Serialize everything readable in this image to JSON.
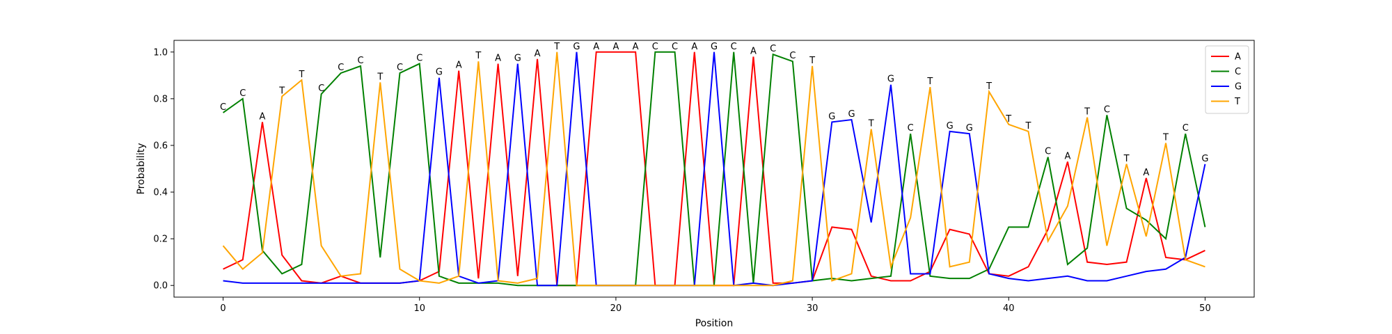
{
  "chart_data": {
    "type": "line",
    "xlabel": "Position",
    "ylabel": "Probability",
    "xlim": [
      -2.5,
      52.5
    ],
    "ylim": [
      -0.05,
      1.05
    ],
    "xticks": [
      0,
      10,
      20,
      30,
      40,
      50
    ],
    "yticks": [
      0.0,
      0.2,
      0.4,
      0.6,
      0.8,
      1.0
    ],
    "xtick_labels": [
      "0",
      "10",
      "20",
      "30",
      "40",
      "50"
    ],
    "ytick_labels": [
      "0.0",
      "0.2",
      "0.4",
      "0.6",
      "0.8",
      "1.0"
    ],
    "grid": false,
    "legend_placement": "top-right",
    "x": [
      0,
      1,
      2,
      3,
      4,
      5,
      6,
      7,
      8,
      9,
      10,
      11,
      12,
      13,
      14,
      15,
      16,
      17,
      18,
      19,
      20,
      21,
      22,
      23,
      24,
      25,
      26,
      27,
      28,
      29,
      30,
      31,
      32,
      33,
      34,
      35,
      36,
      37,
      38,
      39,
      40,
      41,
      42,
      43,
      44,
      45,
      46,
      47,
      48,
      49,
      50
    ],
    "series": [
      {
        "name": "A",
        "color": "#ff0000",
        "values": [
          0.07,
          0.11,
          0.7,
          0.13,
          0.02,
          0.01,
          0.04,
          0.01,
          0.01,
          0.01,
          0.02,
          0.06,
          0.92,
          0.03,
          0.95,
          0.04,
          0.97,
          0.0,
          0.0,
          1.0,
          1.0,
          1.0,
          0.0,
          0.0,
          1.0,
          0.0,
          0.0,
          0.98,
          0.01,
          0.01,
          0.02,
          0.25,
          0.24,
          0.04,
          0.02,
          0.02,
          0.06,
          0.24,
          0.22,
          0.05,
          0.04,
          0.08,
          0.24,
          0.53,
          0.1,
          0.09,
          0.1,
          0.46,
          0.12,
          0.11,
          0.15
        ]
      },
      {
        "name": "C",
        "color": "#008000",
        "values": [
          0.74,
          0.8,
          0.15,
          0.05,
          0.09,
          0.82,
          0.91,
          0.94,
          0.12,
          0.91,
          0.95,
          0.04,
          0.01,
          0.01,
          0.01,
          0.0,
          0.0,
          0.0,
          0.0,
          0.0,
          0.0,
          0.0,
          1.0,
          1.0,
          0.0,
          0.0,
          1.0,
          0.01,
          0.99,
          0.96,
          0.02,
          0.03,
          0.02,
          0.03,
          0.04,
          0.65,
          0.04,
          0.03,
          0.03,
          0.07,
          0.25,
          0.25,
          0.55,
          0.09,
          0.16,
          0.73,
          0.33,
          0.28,
          0.2,
          0.65,
          0.25
        ]
      },
      {
        "name": "G",
        "color": "#0000ff",
        "values": [
          0.02,
          0.01,
          0.01,
          0.01,
          0.01,
          0.01,
          0.01,
          0.01,
          0.01,
          0.01,
          0.02,
          0.89,
          0.04,
          0.01,
          0.02,
          0.95,
          0.0,
          0.0,
          1.0,
          0.0,
          0.0,
          0.0,
          0.0,
          0.0,
          0.0,
          1.0,
          0.0,
          0.01,
          0.0,
          0.01,
          0.02,
          0.7,
          0.71,
          0.27,
          0.86,
          0.05,
          0.05,
          0.66,
          0.65,
          0.05,
          0.03,
          0.02,
          0.03,
          0.04,
          0.02,
          0.02,
          0.04,
          0.06,
          0.07,
          0.12,
          0.52
        ]
      },
      {
        "name": "T",
        "color": "#ffa500",
        "values": [
          0.17,
          0.07,
          0.14,
          0.81,
          0.88,
          0.17,
          0.04,
          0.05,
          0.87,
          0.07,
          0.02,
          0.01,
          0.04,
          0.96,
          0.02,
          0.01,
          0.03,
          1.0,
          0.0,
          0.0,
          0.0,
          0.0,
          0.0,
          0.0,
          0.0,
          0.0,
          0.0,
          0.0,
          0.0,
          0.02,
          0.94,
          0.02,
          0.05,
          0.67,
          0.08,
          0.29,
          0.85,
          0.08,
          0.1,
          0.83,
          0.69,
          0.66,
          0.19,
          0.34,
          0.72,
          0.17,
          0.52,
          0.21,
          0.61,
          0.11,
          0.08
        ]
      }
    ],
    "annotations": [
      "C",
      "C",
      "A",
      "T",
      "T",
      "C",
      "C",
      "C",
      "T",
      "C",
      "C",
      "G",
      "A",
      "T",
      "A",
      "G",
      "A",
      "T",
      "G",
      "A",
      "A",
      "A",
      "C",
      "C",
      "A",
      "G",
      "C",
      "A",
      "C",
      "C",
      "T",
      "G",
      "G",
      "T",
      "G",
      "C",
      "T",
      "G",
      "G",
      "T",
      "T",
      "T",
      "C",
      "A",
      "T",
      "C",
      "T",
      "A",
      "T",
      "C",
      "G"
    ]
  }
}
